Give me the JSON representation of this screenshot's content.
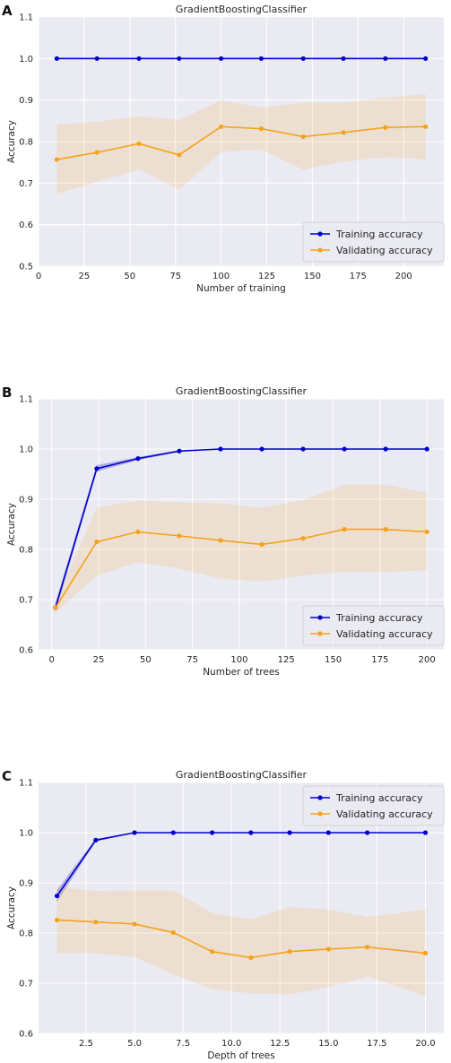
{
  "chart_data": [
    {
      "panel": "A",
      "type": "line",
      "title": "GradientBoostingClassifier",
      "xlabel": "Number of training",
      "ylabel": "Accuracy",
      "xlim": [
        0,
        222
      ],
      "ylim": [
        0.5,
        1.1
      ],
      "xticks": [
        0,
        25,
        50,
        75,
        100,
        125,
        150,
        175,
        200
      ],
      "xtick_labels": [
        "0",
        "25",
        "50",
        "75",
        "100",
        "125",
        "150",
        "175",
        "200"
      ],
      "yticks": [
        0.5,
        0.6,
        0.7,
        0.8,
        0.9,
        1.0,
        1.1
      ],
      "ytick_labels": [
        "0.5",
        "0.6",
        "0.7",
        "0.8",
        "0.9",
        "1.0",
        "1.1"
      ],
      "grid": true,
      "legend_position": "bottom-right",
      "series": [
        {
          "name": "Training accuracy",
          "color": "#0000cc",
          "x": [
            10,
            32,
            55,
            77,
            100,
            122,
            145,
            167,
            190,
            212
          ],
          "y": [
            1.0,
            1.0,
            1.0,
            1.0,
            1.0,
            1.0,
            1.0,
            1.0,
            1.0,
            1.0
          ],
          "band_lower": [
            1.0,
            1.0,
            1.0,
            1.0,
            1.0,
            1.0,
            1.0,
            1.0,
            1.0,
            1.0
          ],
          "band_upper": [
            1.0,
            1.0,
            1.0,
            1.0,
            1.0,
            1.0,
            1.0,
            1.0,
            1.0,
            1.0
          ]
        },
        {
          "name": "Validating accuracy",
          "color": "#f5a21b",
          "x": [
            10,
            32,
            55,
            77,
            100,
            122,
            145,
            167,
            190,
            212
          ],
          "y": [
            0.757,
            0.774,
            0.795,
            0.768,
            0.836,
            0.831,
            0.812,
            0.822,
            0.834,
            0.836
          ],
          "band_lower": [
            0.674,
            0.703,
            0.733,
            0.684,
            0.775,
            0.781,
            0.732,
            0.752,
            0.762,
            0.758
          ],
          "band_upper": [
            0.842,
            0.848,
            0.861,
            0.852,
            0.9,
            0.882,
            0.894,
            0.894,
            0.906,
            0.914
          ]
        }
      ]
    },
    {
      "panel": "B",
      "type": "line",
      "title": "GradientBoostingClassifier",
      "xlabel": "Number of trees",
      "ylabel": "Accuracy",
      "xlim": [
        -7,
        209
      ],
      "ylim": [
        0.6,
        1.1
      ],
      "xticks": [
        0,
        25,
        50,
        75,
        100,
        125,
        150,
        175,
        200
      ],
      "xtick_labels": [
        "0",
        "25",
        "50",
        "75",
        "100",
        "125",
        "150",
        "175",
        "200"
      ],
      "yticks": [
        0.6,
        0.7,
        0.8,
        0.9,
        1.0,
        1.1
      ],
      "ytick_labels": [
        "0.6",
        "0.7",
        "0.8",
        "0.9",
        "1.0",
        "1.1"
      ],
      "grid": true,
      "legend_position": "bottom-right",
      "series": [
        {
          "name": "Training accuracy",
          "color": "#0000cc",
          "x": [
            2,
            24,
            46,
            68,
            90,
            112,
            134,
            156,
            178,
            200
          ],
          "y": [
            0.684,
            0.961,
            0.981,
            0.996,
            1.0,
            1.0,
            1.0,
            1.0,
            1.0,
            1.0
          ],
          "band_lower": [
            0.674,
            0.955,
            0.978,
            0.994,
            1.0,
            1.0,
            1.0,
            1.0,
            1.0,
            1.0
          ],
          "band_upper": [
            0.694,
            0.968,
            0.984,
            0.998,
            1.0,
            1.0,
            1.0,
            1.0,
            1.0,
            1.0
          ]
        },
        {
          "name": "Validating accuracy",
          "color": "#f5a21b",
          "x": [
            2,
            24,
            46,
            68,
            90,
            112,
            134,
            156,
            178,
            200
          ],
          "y": [
            0.684,
            0.815,
            0.835,
            0.827,
            0.818,
            0.81,
            0.822,
            0.84,
            0.84,
            0.835
          ],
          "band_lower": [
            0.674,
            0.747,
            0.775,
            0.762,
            0.742,
            0.736,
            0.748,
            0.755,
            0.755,
            0.758
          ],
          "band_upper": [
            0.694,
            0.884,
            0.897,
            0.894,
            0.892,
            0.883,
            0.898,
            0.929,
            0.929,
            0.913
          ]
        }
      ]
    },
    {
      "panel": "C",
      "type": "line",
      "title": "GradientBoostingClassifier",
      "xlabel": "Depth of trees",
      "ylabel": "Accuracy",
      "xlim": [
        0.05,
        20.95
      ],
      "ylim": [
        0.6,
        1.1
      ],
      "xticks": [
        2.5,
        5.0,
        7.5,
        10.0,
        12.5,
        15.0,
        17.5,
        20.0
      ],
      "xtick_labels": [
        "2.5",
        "5.0",
        "7.5",
        "10.0",
        "12.5",
        "15.0",
        "17.5",
        "20.0"
      ],
      "yticks": [
        0.6,
        0.7,
        0.8,
        0.9,
        1.0,
        1.1
      ],
      "ytick_labels": [
        "0.6",
        "0.7",
        "0.8",
        "0.9",
        "1.0",
        "1.1"
      ],
      "grid": true,
      "legend_position": "top-right",
      "series": [
        {
          "name": "Training accuracy",
          "color": "#0000cc",
          "x": [
            1,
            3,
            5,
            7,
            9,
            11,
            13,
            15,
            17,
            20
          ],
          "y": [
            0.874,
            0.985,
            1.0,
            1.0,
            1.0,
            1.0,
            1.0,
            1.0,
            1.0,
            1.0
          ],
          "band_lower": [
            0.862,
            0.982,
            1.0,
            1.0,
            1.0,
            1.0,
            1.0,
            1.0,
            1.0,
            1.0
          ],
          "band_upper": [
            0.886,
            0.988,
            1.0,
            1.0,
            1.0,
            1.0,
            1.0,
            1.0,
            1.0,
            1.0
          ]
        },
        {
          "name": "Validating accuracy",
          "color": "#f5a21b",
          "x": [
            1,
            3,
            5,
            7,
            9,
            11,
            13,
            15,
            17,
            20
          ],
          "y": [
            0.826,
            0.822,
            0.818,
            0.801,
            0.763,
            0.751,
            0.763,
            0.768,
            0.772,
            0.76
          ],
          "band_lower": [
            0.76,
            0.76,
            0.752,
            0.718,
            0.688,
            0.68,
            0.678,
            0.692,
            0.713,
            0.674
          ],
          "band_upper": [
            0.892,
            0.884,
            0.885,
            0.885,
            0.84,
            0.827,
            0.852,
            0.847,
            0.832,
            0.847
          ]
        }
      ]
    }
  ]
}
